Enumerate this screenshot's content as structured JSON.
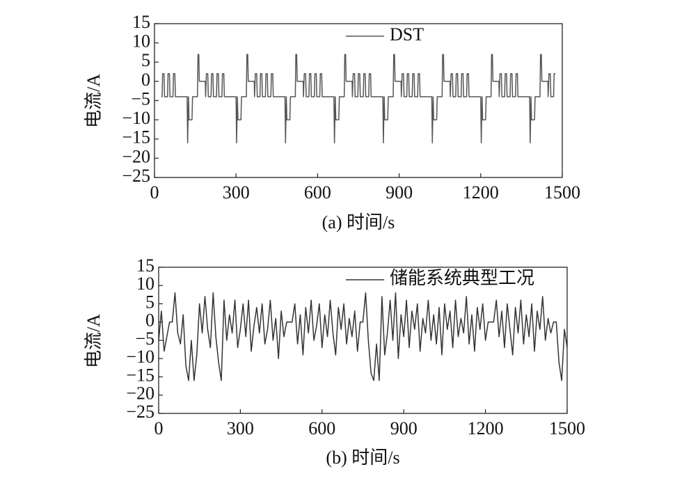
{
  "chart_data": [
    {
      "type": "line",
      "x_label": "(a) 时间/s",
      "y_label": "电流/A",
      "legend": "upper right",
      "xlim": [
        0,
        1500
      ],
      "xticks": [
        0,
        300,
        600,
        900,
        1200,
        1500
      ],
      "ylim": [
        -25,
        15
      ],
      "yticks": [
        15,
        10,
        5,
        0,
        {
          "value": -5,
          "label": "−5"
        },
        {
          "value": -10,
          "label": "−10"
        },
        {
          "value": -15,
          "label": "−15"
        },
        {
          "value": -20,
          "label": "−20"
        },
        {
          "value": -25,
          "label": "−25"
        }
      ],
      "series": [
        {
          "name": "DST",
          "color": "#555555",
          "x": [
            25,
            28,
            30,
            35,
            37,
            48,
            50,
            55,
            57,
            68,
            70,
            75,
            77,
            120,
            122,
            125,
            127,
            138,
            140,
            158,
            160,
            163,
            165,
            187,
            188,
            191,
            196,
            198,
            208,
            210,
            215,
            217,
            228,
            230,
            235,
            237,
            248,
            250,
            255,
            257,
            300,
            302,
            305,
            307,
            318,
            320,
            338,
            340,
            343,
            345,
            367,
            368,
            371,
            376,
            378,
            388,
            390,
            395,
            397,
            408,
            410,
            415,
            417,
            428,
            430,
            435,
            437,
            480,
            482,
            485,
            487,
            498,
            500,
            518,
            520,
            523,
            525,
            547,
            548,
            551,
            556,
            558,
            568,
            570,
            575,
            577,
            588,
            590,
            595,
            597,
            608,
            610,
            615,
            617,
            660,
            662,
            665,
            667,
            678,
            680,
            698,
            700,
            703,
            705,
            727,
            728,
            731,
            736,
            738,
            748,
            750,
            755,
            757,
            768,
            770,
            775,
            777,
            788,
            790,
            795,
            797,
            840,
            842,
            845,
            847,
            858,
            860,
            878,
            880,
            883,
            885,
            907,
            908,
            911,
            916,
            918,
            928,
            930,
            935,
            937,
            948,
            950,
            955,
            957,
            968,
            970,
            975,
            977,
            1020,
            1022,
            1025,
            1027,
            1038,
            1040,
            1058,
            1060,
            1063,
            1065,
            1087,
            1088,
            1091,
            1096,
            1098,
            1108,
            1110,
            1115,
            1117,
            1128,
            1130,
            1135,
            1137,
            1148,
            1150,
            1155,
            1157,
            1200,
            1202,
            1205,
            1207,
            1218,
            1220,
            1238,
            1240,
            1243,
            1245,
            1267,
            1268,
            1271,
            1276,
            1278,
            1288,
            1290,
            1295,
            1297,
            1308,
            1310,
            1315,
            1317,
            1328,
            1330,
            1335,
            1337,
            1380,
            1382,
            1385,
            1387,
            1398,
            1400,
            1418,
            1420,
            1423,
            1425,
            1447,
            1448,
            1451,
            1456,
            1458,
            1468,
            1470,
            1475
          ],
          "values": [
            -4,
            -4,
            2,
            2,
            -4,
            -4,
            2,
            2,
            -4,
            -4,
            2,
            2,
            -4,
            -4,
            -16,
            -4,
            -10,
            -10,
            -4,
            -4,
            7,
            7,
            0,
            0,
            -4,
            2,
            2,
            -4,
            -4,
            2,
            2,
            -4,
            -4,
            2,
            2,
            -4,
            -4,
            2,
            2,
            -4,
            -4,
            -16,
            -4,
            -10,
            -10,
            -4,
            -4,
            7,
            7,
            0,
            0,
            -4,
            2,
            2,
            -4,
            -4,
            2,
            2,
            -4,
            -4,
            2,
            2,
            -4,
            -4,
            2,
            2,
            -4,
            -4,
            -16,
            -4,
            -10,
            -10,
            -4,
            -4,
            7,
            7,
            0,
            0,
            -4,
            2,
            2,
            -4,
            -4,
            2,
            2,
            -4,
            -4,
            2,
            2,
            -4,
            -4,
            2,
            2,
            -4,
            -4,
            -16,
            -4,
            -10,
            -10,
            -4,
            -4,
            7,
            7,
            0,
            0,
            -4,
            2,
            2,
            -4,
            -4,
            2,
            2,
            -4,
            -4,
            2,
            2,
            -4,
            -4,
            2,
            2,
            -4,
            -4,
            -16,
            -4,
            -10,
            -10,
            -4,
            -4,
            7,
            7,
            0,
            0,
            -4,
            2,
            2,
            -4,
            -4,
            2,
            2,
            -4,
            -4,
            2,
            2,
            -4,
            -4,
            2,
            2,
            -4,
            -4,
            -16,
            -4,
            -10,
            -10,
            -4,
            -4,
            7,
            7,
            0,
            0,
            -4,
            2,
            2,
            -4,
            -4,
            2,
            2,
            -4,
            -4,
            2,
            2,
            -4,
            -4,
            2,
            2,
            -4,
            -4,
            -16,
            -4,
            -10,
            -10,
            -4,
            -4,
            7,
            7,
            0,
            0,
            -4,
            2,
            2,
            -4,
            -4,
            2,
            2,
            -4,
            -4,
            2,
            2,
            -4,
            -4,
            2,
            2,
            -4,
            -4,
            -16,
            -4,
            -10,
            -10,
            -4,
            -4,
            7,
            7,
            0,
            0,
            -4,
            2,
            2,
            -4,
            -4,
            2,
            2
          ]
        }
      ]
    },
    {
      "type": "line",
      "x_label": "(b) 时间/s",
      "y_label": "电流/A",
      "legend": "upper right",
      "xlim": [
        0,
        1500
      ],
      "xticks": [
        0,
        300,
        600,
        900,
        1200,
        1500
      ],
      "ylim": [
        -25,
        15
      ],
      "yticks": [
        15,
        10,
        5,
        0,
        {
          "value": -5,
          "label": "−5"
        },
        {
          "value": -10,
          "label": "−10"
        },
        {
          "value": -15,
          "label": "−15"
        },
        {
          "value": -20,
          "label": "−20"
        },
        {
          "value": -25,
          "label": "−25"
        }
      ],
      "series": [
        {
          "name": "储能系统典型工况",
          "color": "#333333",
          "x": [
            0,
            10,
            20,
            30,
            40,
            50,
            60,
            70,
            80,
            90,
            100,
            110,
            120,
            130,
            140,
            150,
            160,
            170,
            180,
            190,
            200,
            210,
            220,
            230,
            240,
            250,
            260,
            270,
            280,
            290,
            300,
            310,
            320,
            330,
            340,
            350,
            360,
            370,
            380,
            390,
            400,
            410,
            420,
            430,
            440,
            450,
            460,
            470,
            480,
            490,
            500,
            510,
            520,
            530,
            540,
            550,
            560,
            570,
            580,
            590,
            600,
            610,
            620,
            630,
            640,
            650,
            660,
            670,
            680,
            690,
            700,
            710,
            720,
            730,
            740,
            750,
            760,
            770,
            780,
            790,
            800,
            810,
            820,
            830,
            840,
            850,
            860,
            870,
            880,
            890,
            900,
            910,
            920,
            930,
            940,
            950,
            960,
            970,
            980,
            990,
            1000,
            1010,
            1020,
            1030,
            1040,
            1050,
            1060,
            1070,
            1080,
            1090,
            1100,
            1110,
            1120,
            1130,
            1140,
            1150,
            1160,
            1170,
            1180,
            1190,
            1200,
            1210,
            1220,
            1230,
            1240,
            1250,
            1260,
            1270,
            1280,
            1290,
            1300,
            1310,
            1320,
            1330,
            1340,
            1350,
            1360,
            1370,
            1380,
            1390,
            1400,
            1410,
            1420,
            1430,
            1440,
            1450,
            1460,
            1470,
            1480,
            1490,
            1500
          ],
          "values": [
            -5,
            3,
            -8,
            -4,
            0,
            0,
            8,
            -3,
            -6,
            2,
            -12,
            -16,
            -5,
            -16,
            -9,
            5,
            -3,
            7,
            -2,
            -7,
            8,
            -4,
            -11,
            -16,
            6,
            -5,
            2,
            -3,
            6,
            -7,
            -2,
            5,
            -4,
            6,
            -8,
            -1,
            4,
            -3,
            5,
            -6,
            -2,
            6,
            -5,
            1,
            -10,
            3,
            -4,
            0,
            0,
            0,
            5,
            -6,
            2,
            -9,
            4,
            -3,
            6,
            -5,
            -1,
            5,
            -7,
            2,
            -4,
            6,
            -3,
            -9,
            4,
            -2,
            5,
            -6,
            1,
            -4,
            3,
            -8,
            0,
            0,
            8,
            -5,
            -14,
            -16,
            -6,
            -16,
            7,
            -9,
            -3,
            6,
            -5,
            8,
            -10,
            2,
            -4,
            6,
            -7,
            3,
            -2,
            5,
            -8,
            1,
            -3,
            6,
            -5,
            2,
            -6,
            4,
            -9,
            5,
            -2,
            3,
            -7,
            6,
            -4,
            1,
            -3,
            7,
            -6,
            2,
            -8,
            4,
            -2,
            5,
            -5,
            0,
            0,
            0,
            6,
            -4,
            3,
            -7,
            5,
            -2,
            -9,
            4,
            -3,
            6,
            -6,
            2,
            -4,
            5,
            -8,
            3,
            -2,
            7,
            -5,
            1,
            -3,
            0,
            0,
            -11,
            -16,
            -2,
            -7
          ]
        }
      ]
    }
  ]
}
